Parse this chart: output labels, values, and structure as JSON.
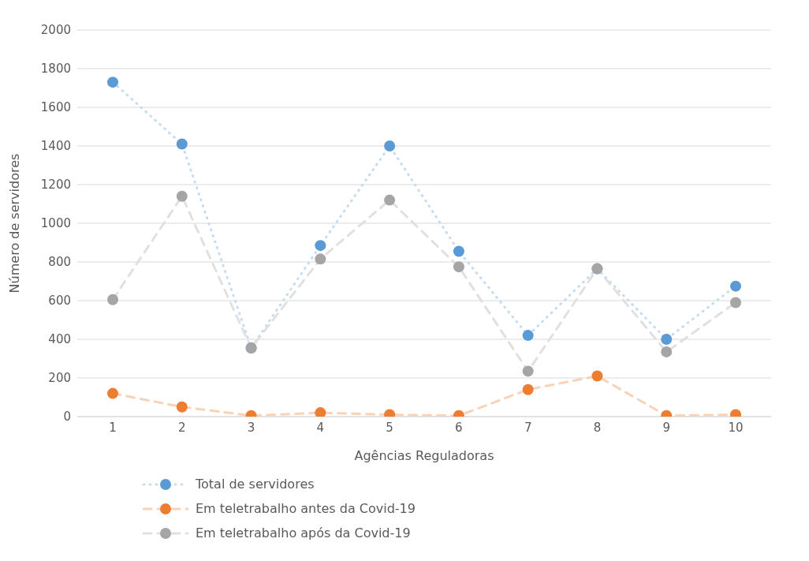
{
  "chart_data": {
    "type": "line",
    "xlabel": "Agências Reguladoras",
    "ylabel": "Número de servidores",
    "categories": [
      "1",
      "2",
      "3",
      "4",
      "5",
      "6",
      "7",
      "8",
      "9",
      "10"
    ],
    "series": [
      {
        "name": "Total de servidores",
        "color": "#5b9bd5",
        "line_style": "dotted",
        "values": [
          1730,
          1410,
          355,
          885,
          1400,
          855,
          420,
          765,
          400,
          675
        ]
      },
      {
        "name": "Em teletrabalho antes da Covid-19",
        "color": "#ed7d31",
        "line_style": "dashed",
        "values": [
          120,
          50,
          5,
          20,
          10,
          5,
          140,
          210,
          5,
          10
        ]
      },
      {
        "name": "Em teletrabalho após da Covid-19",
        "color": "#a5a5a5",
        "line_style": "dashed",
        "values": [
          605,
          1140,
          355,
          815,
          1120,
          775,
          235,
          765,
          335,
          590
        ]
      }
    ],
    "ylim": [
      0,
      2000
    ],
    "yticks": [
      0,
      200,
      400,
      600,
      800,
      1000,
      1200,
      1400,
      1600,
      1800,
      2000
    ],
    "grid": "y",
    "legend": "bottom",
    "marker": "circle"
  }
}
